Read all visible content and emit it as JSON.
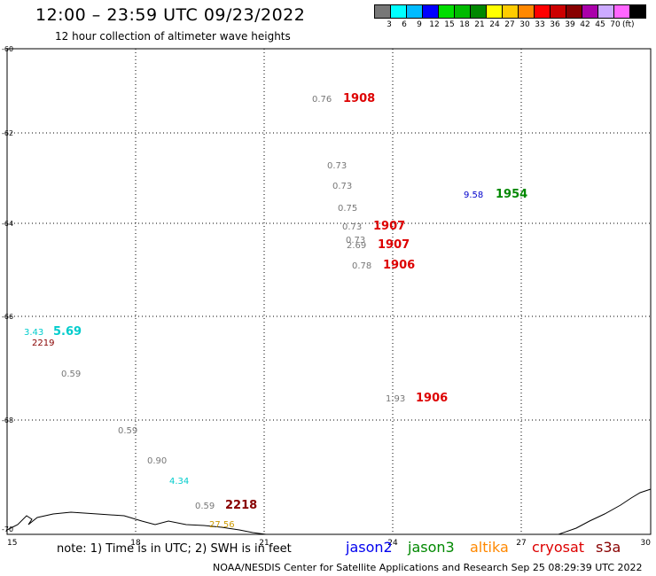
{
  "header": {
    "title": "12:00 – 23:59 UTC 09/23/2022",
    "subtitle": "12 hour collection of altimeter wave heights"
  },
  "legend": {
    "colors": [
      "#777777",
      "#00ffff",
      "#00bbff",
      "#0000ff",
      "#00dd00",
      "#00bb00",
      "#008800",
      "#ffff00",
      "#ffcc00",
      "#ff8800",
      "#ff0000",
      "#cc0000",
      "#880000",
      "#aa00aa",
      "#ccaaff",
      "#ff66ff",
      "#000000"
    ],
    "labels": [
      "3",
      "6",
      "9",
      "12",
      "15",
      "18",
      "21",
      "24",
      "27",
      "30",
      "33",
      "36",
      "39",
      "42",
      "45",
      "70"
    ],
    "unit": "(ft)"
  },
  "axes": {
    "x_ticks": [
      "15",
      "18",
      "21",
      "24",
      "27",
      "30"
    ],
    "y_ticks": [
      "-60",
      "-62",
      "-64",
      "-66",
      "-68",
      "-70"
    ]
  },
  "map_data": {
    "observations": [
      {
        "text": "0.76",
        "color": "#777777"
      },
      {
        "text": "1908",
        "color": "#dd0000"
      },
      {
        "text": "0.73",
        "color": "#777777"
      },
      {
        "text": "0.73",
        "color": "#777777"
      },
      {
        "text": "9.58",
        "color": "#0000cc"
      },
      {
        "text": "1954",
        "color": "#008800"
      },
      {
        "text": "0.75",
        "color": "#777777"
      },
      {
        "text": "0.73",
        "color": "#777777"
      },
      {
        "text": "1907",
        "color": "#dd0000"
      },
      {
        "text": "0.73",
        "color": "#777777"
      },
      {
        "text": "2.69",
        "color": "#777777"
      },
      {
        "text": "1907",
        "color": "#dd0000"
      },
      {
        "text": "0.78",
        "color": "#777777"
      },
      {
        "text": "1906",
        "color": "#dd0000"
      },
      {
        "text": "3.43",
        "color": "#00cccc"
      },
      {
        "text": "5.69",
        "color": "#00cccc"
      },
      {
        "text": "2219",
        "color": "#880000"
      },
      {
        "text": "0.59",
        "color": "#777777"
      },
      {
        "text": "1.93",
        "color": "#777777"
      },
      {
        "text": "1906",
        "color": "#dd0000"
      },
      {
        "text": "0.59",
        "color": "#777777"
      },
      {
        "text": "0.90",
        "color": "#777777"
      },
      {
        "text": "4.34",
        "color": "#00cccc"
      },
      {
        "text": "0.59",
        "color": "#777777"
      },
      {
        "text": "2218",
        "color": "#880000"
      },
      {
        "text": "27.56",
        "color": "#cc9900"
      }
    ]
  },
  "footer": {
    "note": "note: 1) Time is in UTC; 2) SWH is in feet",
    "satellites": [
      {
        "name": "jason2",
        "color": "#0000ee"
      },
      {
        "name": "jason3",
        "color": "#008800"
      },
      {
        "name": "altika",
        "color": "#ff8800"
      },
      {
        "name": "cryosat",
        "color": "#dd0000"
      },
      {
        "name": "s3a",
        "color": "#880000"
      }
    ],
    "credit": "NOAA/NESDIS Center for Satellite Applications and Research    Sep 25 08:29:39 UTC 2022"
  }
}
